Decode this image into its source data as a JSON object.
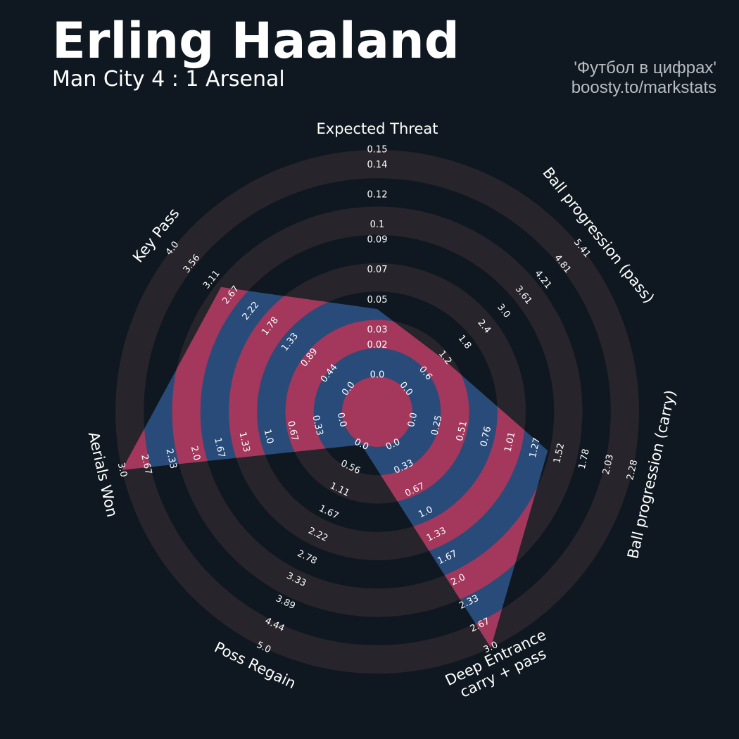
{
  "title": "Erling Haaland",
  "subtitle": "Man City 4 : 1 Arsenal",
  "credits": [
    "'Футбол в цифрах'",
    "boosty.to/markstats"
  ],
  "chart_data": {
    "type": "radar",
    "params": [
      "Expected Threat",
      "Ball progression (pass)",
      "Ball progression (carry)",
      "Deep Entrance\ncarry + pass",
      "Poss Regain",
      "Aerials Won",
      "Key Pass"
    ],
    "values": [
      0.044,
      1.15,
      1.4,
      3.0,
      0,
      3.0,
      2.9
    ],
    "ranges": [
      [
        0,
        0.15
      ],
      [
        0,
        5.41
      ],
      [
        0,
        2.28
      ],
      [
        0,
        3
      ],
      [
        0,
        5
      ],
      [
        0,
        3
      ],
      [
        0,
        4
      ]
    ],
    "ticks": [
      [
        {
          "value": 0,
          "label": "0.0"
        },
        0.02,
        0.03,
        0.05,
        0.07,
        0.09,
        0.1,
        0.12,
        0.14,
        0.15
      ],
      [
        {
          "value": 0,
          "label": "0.0"
        },
        0.6,
        1.2,
        1.8,
        2.4,
        {
          "value": 3,
          "label": "3.0"
        },
        3.61,
        4.21,
        4.81,
        5.41
      ],
      [
        {
          "value": 0,
          "label": "0.0"
        },
        0.25,
        0.51,
        0.76,
        1.01,
        1.27,
        1.52,
        1.78,
        2.03,
        2.28
      ],
      [
        {
          "value": 0,
          "label": "0.0"
        },
        0.33,
        0.67,
        {
          "value": 1,
          "label": "1.0"
        },
        1.33,
        1.67,
        {
          "value": 2,
          "label": "2.0"
        },
        2.33,
        2.67,
        {
          "value": 3,
          "label": "3.0"
        }
      ],
      [
        {
          "value": 0,
          "label": "0.0"
        },
        0.56,
        1.11,
        1.67,
        2.22,
        2.78,
        3.33,
        3.89,
        4.44,
        {
          "value": 5,
          "label": "5.0"
        }
      ],
      [
        {
          "value": 0,
          "label": "0.0"
        },
        0.33,
        0.67,
        {
          "value": 1,
          "label": "1.0"
        },
        1.33,
        1.67,
        {
          "value": 2,
          "label": "2.0"
        },
        2.33,
        2.67,
        {
          "value": 3,
          "label": "3.0"
        }
      ],
      [
        {
          "value": 0,
          "label": "0.0"
        },
        0.44,
        0.89,
        1.33,
        1.78,
        2.22,
        2.67,
        3.11,
        3.56,
        {
          "value": 4,
          "label": "4.0"
        }
      ]
    ],
    "fill_color": "#284b79",
    "highlight_color": "#a3375c",
    "ring_color": "#28242b"
  }
}
